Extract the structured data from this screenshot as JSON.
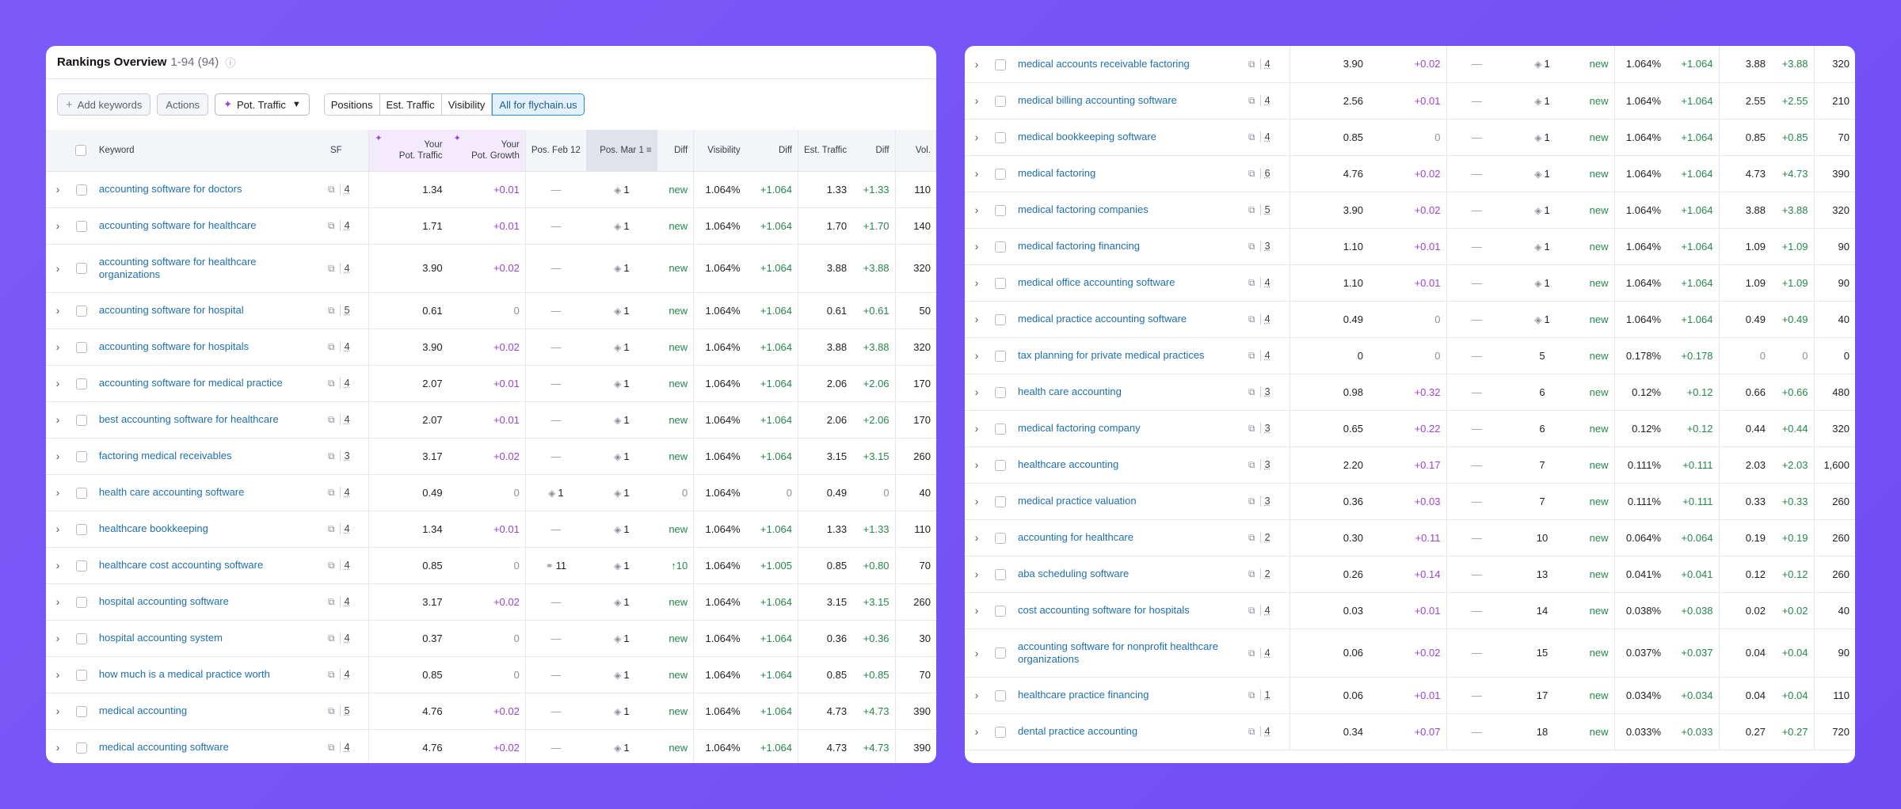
{
  "header": {
    "title": "Rankings Overview",
    "range": "1-94 (94)",
    "info_icon": "info-icon"
  },
  "toolbar": {
    "add_keywords": "Add keywords",
    "actions": "Actions",
    "traffic_select": "Pot. Traffic",
    "segments": [
      "Positions",
      "Est. Traffic",
      "Visibility",
      "All for flychain.us"
    ],
    "active_segment": "All for flychain.us"
  },
  "columns": {
    "sf": "SF",
    "keyword": "Keyword",
    "pot_traffic": [
      "Your",
      "Pot. Traffic"
    ],
    "pot_growth": [
      "Your",
      "Pot. Growth"
    ],
    "pos_feb": "Pos. Feb 12",
    "pos_mar": "Pos. Mar 1",
    "diff": "Diff",
    "visibility": "Visibility",
    "vis_diff": "Diff",
    "est_traffic": "Est. Traffic",
    "traffic_diff": "Diff",
    "volume": "Vol."
  },
  "colors": {
    "accent_purple": "#9b43d8",
    "positive_green": "#25874b",
    "link_blue": "#1e6fae",
    "background": "#7a5af8"
  },
  "rows_left": [
    {
      "kw": "accounting software for doctors",
      "sf": "4",
      "pt": "1.34",
      "pg": "+0.01",
      "feb": "—",
      "mar": "1",
      "d": "new",
      "vis": "1.064%",
      "vd": "+1.064",
      "et": "1.33",
      "td": "+1.33",
      "vol": "110"
    },
    {
      "kw": "accounting software for healthcare",
      "sf": "4",
      "pt": "1.71",
      "pg": "+0.01",
      "feb": "—",
      "mar": "1",
      "d": "new",
      "vis": "1.064%",
      "vd": "+1.064",
      "et": "1.70",
      "td": "+1.70",
      "vol": "140"
    },
    {
      "kw": "accounting software for healthcare organizations",
      "sf": "4",
      "pt": "3.90",
      "pg": "+0.02",
      "feb": "—",
      "mar": "1",
      "d": "new",
      "vis": "1.064%",
      "vd": "+1.064",
      "et": "3.88",
      "td": "+3.88",
      "vol": "320"
    },
    {
      "kw": "accounting software for hospital",
      "sf": "5",
      "pt": "0.61",
      "pg": "0",
      "feb": "—",
      "mar": "1",
      "d": "new",
      "vis": "1.064%",
      "vd": "+1.064",
      "et": "0.61",
      "td": "+0.61",
      "vol": "50"
    },
    {
      "kw": "accounting software for hospitals",
      "sf": "4",
      "pt": "3.90",
      "pg": "+0.02",
      "feb": "—",
      "mar": "1",
      "d": "new",
      "vis": "1.064%",
      "vd": "+1.064",
      "et": "3.88",
      "td": "+3.88",
      "vol": "320"
    },
    {
      "kw": "accounting software for medical practice",
      "sf": "4",
      "pt": "2.07",
      "pg": "+0.01",
      "feb": "—",
      "mar": "1",
      "d": "new",
      "vis": "1.064%",
      "vd": "+1.064",
      "et": "2.06",
      "td": "+2.06",
      "vol": "170"
    },
    {
      "kw": "best accounting software for healthcare",
      "sf": "4",
      "pt": "2.07",
      "pg": "+0.01",
      "feb": "—",
      "mar": "1",
      "d": "new",
      "vis": "1.064%",
      "vd": "+1.064",
      "et": "2.06",
      "td": "+2.06",
      "vol": "170"
    },
    {
      "kw": "factoring medical receivables",
      "sf": "3",
      "pt": "3.17",
      "pg": "+0.02",
      "feb": "—",
      "mar": "1",
      "d": "new",
      "vis": "1.064%",
      "vd": "+1.064",
      "et": "3.15",
      "td": "+3.15",
      "vol": "260"
    },
    {
      "kw": "health care accounting software",
      "sf": "4",
      "pt": "0.49",
      "pg": "0",
      "feb": "1",
      "mar": "1",
      "d": "0",
      "vis": "1.064%",
      "vd": "0",
      "et": "0.49",
      "td": "0",
      "vol": "40"
    },
    {
      "kw": "healthcare bookkeeping",
      "sf": "4",
      "pt": "1.34",
      "pg": "+0.01",
      "feb": "—",
      "mar": "1",
      "d": "new",
      "vis": "1.064%",
      "vd": "+1.064",
      "et": "1.33",
      "td": "+1.33",
      "vol": "110"
    },
    {
      "kw": "healthcare cost accounting software",
      "sf": "4",
      "pt": "0.85",
      "pg": "0",
      "feb": "11",
      "mar": "1",
      "d": "↑10",
      "vis": "1.064%",
      "vd": "+1.005",
      "et": "0.85",
      "td": "+0.80",
      "vol": "70"
    },
    {
      "kw": "hospital accounting software",
      "sf": "4",
      "pt": "3.17",
      "pg": "+0.02",
      "feb": "—",
      "mar": "1",
      "d": "new",
      "vis": "1.064%",
      "vd": "+1.064",
      "et": "3.15",
      "td": "+3.15",
      "vol": "260"
    },
    {
      "kw": "hospital accounting system",
      "sf": "4",
      "pt": "0.37",
      "pg": "0",
      "feb": "—",
      "mar": "1",
      "d": "new",
      "vis": "1.064%",
      "vd": "+1.064",
      "et": "0.36",
      "td": "+0.36",
      "vol": "30"
    },
    {
      "kw": "how much is a medical practice worth",
      "sf": "4",
      "pt": "0.85",
      "pg": "0",
      "feb": "—",
      "mar": "1",
      "d": "new",
      "vis": "1.064%",
      "vd": "+1.064",
      "et": "0.85",
      "td": "+0.85",
      "vol": "70"
    },
    {
      "kw": "medical accounting",
      "sf": "5",
      "pt": "4.76",
      "pg": "+0.02",
      "feb": "—",
      "mar": "1",
      "d": "new",
      "vis": "1.064%",
      "vd": "+1.064",
      "et": "4.73",
      "td": "+4.73",
      "vol": "390"
    },
    {
      "kw": "medical accounting software",
      "sf": "4",
      "pt": "4.76",
      "pg": "+0.02",
      "feb": "—",
      "mar": "1",
      "d": "new",
      "vis": "1.064%",
      "vd": "+1.064",
      "et": "4.73",
      "td": "+4.73",
      "vol": "390"
    }
  ],
  "rows_right": [
    {
      "kw": "medical accounts receivable factoring",
      "sf": "4",
      "pt": "3.90",
      "pg": "+0.02",
      "feb": "—",
      "mar": "1",
      "d": "new",
      "vis": "1.064%",
      "vd": "+1.064",
      "et": "3.88",
      "td": "+3.88",
      "vol": "320"
    },
    {
      "kw": "medical billing accounting software",
      "sf": "4",
      "pt": "2.56",
      "pg": "+0.01",
      "feb": "—",
      "mar": "1",
      "d": "new",
      "vis": "1.064%",
      "vd": "+1.064",
      "et": "2.55",
      "td": "+2.55",
      "vol": "210"
    },
    {
      "kw": "medical bookkeeping software",
      "sf": "4",
      "pt": "0.85",
      "pg": "0",
      "feb": "—",
      "mar": "1",
      "d": "new",
      "vis": "1.064%",
      "vd": "+1.064",
      "et": "0.85",
      "td": "+0.85",
      "vol": "70"
    },
    {
      "kw": "medical factoring",
      "sf": "6",
      "pt": "4.76",
      "pg": "+0.02",
      "feb": "—",
      "mar": "1",
      "d": "new",
      "vis": "1.064%",
      "vd": "+1.064",
      "et": "4.73",
      "td": "+4.73",
      "vol": "390"
    },
    {
      "kw": "medical factoring companies",
      "sf": "5",
      "pt": "3.90",
      "pg": "+0.02",
      "feb": "—",
      "mar": "1",
      "d": "new",
      "vis": "1.064%",
      "vd": "+1.064",
      "et": "3.88",
      "td": "+3.88",
      "vol": "320"
    },
    {
      "kw": "medical factoring financing",
      "sf": "3",
      "pt": "1.10",
      "pg": "+0.01",
      "feb": "—",
      "mar": "1",
      "d": "new",
      "vis": "1.064%",
      "vd": "+1.064",
      "et": "1.09",
      "td": "+1.09",
      "vol": "90"
    },
    {
      "kw": "medical office accounting software",
      "sf": "4",
      "pt": "1.10",
      "pg": "+0.01",
      "feb": "—",
      "mar": "1",
      "d": "new",
      "vis": "1.064%",
      "vd": "+1.064",
      "et": "1.09",
      "td": "+1.09",
      "vol": "90"
    },
    {
      "kw": "medical practice accounting software",
      "sf": "4",
      "pt": "0.49",
      "pg": "0",
      "feb": "—",
      "mar": "1",
      "d": "new",
      "vis": "1.064%",
      "vd": "+1.064",
      "et": "0.49",
      "td": "+0.49",
      "vol": "40"
    },
    {
      "kw": "tax planning for private medical practices",
      "sf": "4",
      "pt": "0",
      "pg": "0",
      "feb": "—",
      "mar": "5",
      "d": "new",
      "vis": "0.178%",
      "vd": "+0.178",
      "et": "0",
      "td": "0",
      "vol": "0"
    },
    {
      "kw": "health care accounting",
      "sf": "3",
      "pt": "0.98",
      "pg": "+0.32",
      "feb": "—",
      "mar": "6",
      "d": "new",
      "vis": "0.12%",
      "vd": "+0.12",
      "et": "0.66",
      "td": "+0.66",
      "vol": "480"
    },
    {
      "kw": "medical factoring company",
      "sf": "3",
      "pt": "0.65",
      "pg": "+0.22",
      "feb": "—",
      "mar": "6",
      "d": "new",
      "vis": "0.12%",
      "vd": "+0.12",
      "et": "0.44",
      "td": "+0.44",
      "vol": "320"
    },
    {
      "kw": "healthcare accounting",
      "sf": "3",
      "pt": "2.20",
      "pg": "+0.17",
      "feb": "—",
      "mar": "7",
      "d": "new",
      "vis": "0.111%",
      "vd": "+0.111",
      "et": "2.03",
      "td": "+2.03",
      "vol": "1,600"
    },
    {
      "kw": "medical practice valuation",
      "sf": "3",
      "pt": "0.36",
      "pg": "+0.03",
      "feb": "—",
      "mar": "7",
      "d": "new",
      "vis": "0.111%",
      "vd": "+0.111",
      "et": "0.33",
      "td": "+0.33",
      "vol": "260"
    },
    {
      "kw": "accounting for healthcare",
      "sf": "2",
      "pt": "0.30",
      "pg": "+0.11",
      "feb": "—",
      "mar": "10",
      "d": "new",
      "vis": "0.064%",
      "vd": "+0.064",
      "et": "0.19",
      "td": "+0.19",
      "vol": "260"
    },
    {
      "kw": "aba scheduling software",
      "sf": "2",
      "pt": "0.26",
      "pg": "+0.14",
      "feb": "—",
      "mar": "13",
      "d": "new",
      "vis": "0.041%",
      "vd": "+0.041",
      "et": "0.12",
      "td": "+0.12",
      "vol": "260"
    },
    {
      "kw": "cost accounting software for hospitals",
      "sf": "4",
      "pt": "0.03",
      "pg": "+0.01",
      "feb": "—",
      "mar": "14",
      "d": "new",
      "vis": "0.038%",
      "vd": "+0.038",
      "et": "0.02",
      "td": "+0.02",
      "vol": "40"
    },
    {
      "kw": "accounting software for nonprofit healthcare organizations",
      "sf": "4",
      "pt": "0.06",
      "pg": "+0.02",
      "feb": "—",
      "mar": "15",
      "d": "new",
      "vis": "0.037%",
      "vd": "+0.037",
      "et": "0.04",
      "td": "+0.04",
      "vol": "90"
    },
    {
      "kw": "healthcare practice financing",
      "sf": "1",
      "pt": "0.06",
      "pg": "+0.01",
      "feb": "—",
      "mar": "17",
      "d": "new",
      "vis": "0.034%",
      "vd": "+0.034",
      "et": "0.04",
      "td": "+0.04",
      "vol": "110"
    },
    {
      "kw": "dental practice accounting",
      "sf": "4",
      "pt": "0.34",
      "pg": "+0.07",
      "feb": "—",
      "mar": "18",
      "d": "new",
      "vis": "0.033%",
      "vd": "+0.033",
      "et": "0.27",
      "td": "+0.27",
      "vol": "720"
    }
  ]
}
